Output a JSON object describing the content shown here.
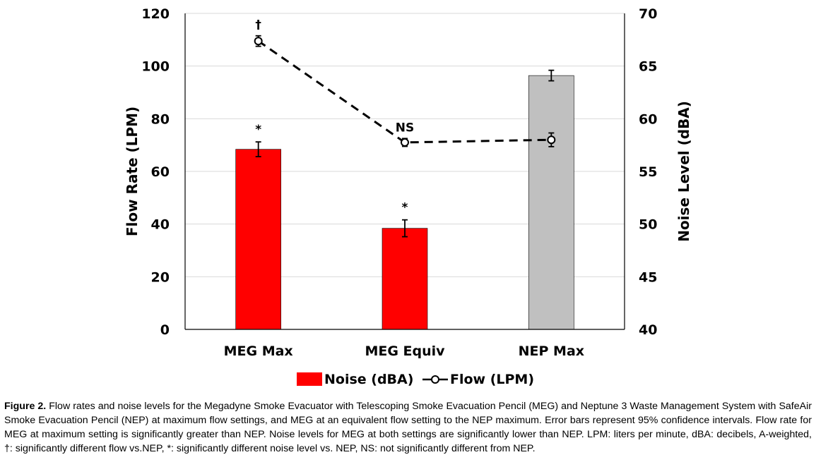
{
  "chart_data": {
    "type": "bar",
    "categories": [
      "MEG Max",
      "MEG Equiv",
      "NEP Max"
    ],
    "series": [
      {
        "name": "Noise (dBA)",
        "axis": "right",
        "kind": "bar",
        "values": [
          57.1,
          49.6,
          64.1
        ],
        "error": [
          0.7,
          0.8,
          0.5
        ],
        "colors": [
          "#ff0000",
          "#ff0000",
          "#c0c0c0"
        ],
        "annotations": [
          "*",
          "*",
          ""
        ]
      },
      {
        "name": "Flow (LPM)",
        "axis": "left",
        "kind": "line",
        "style": "dashed",
        "values": [
          109.5,
          71.0,
          72.0
        ],
        "error": [
          2.0,
          1.5,
          2.6
        ],
        "annotations": [
          "†",
          "NS",
          ""
        ]
      }
    ],
    "ylabel_left": "Flow Rate (LPM)",
    "ylabel_right": "Noise Level (dBA)",
    "ylim_left": [
      0,
      120
    ],
    "ylim_right": [
      40,
      70
    ],
    "yticks_left": [
      "0",
      "20",
      "40",
      "60",
      "80",
      "100",
      "120"
    ],
    "yticks_right": [
      "40",
      "45",
      "50",
      "55",
      "60",
      "65",
      "70"
    ],
    "grid": true,
    "legend": "bottom"
  },
  "caption": {
    "label": "Figure 2.",
    "text": "Flow rates and noise levels for the Megadyne Smoke Evacuator with Telescoping Smoke Evacuation Pencil (MEG) and Neptune 3 Waste Management System with SafeAir Smoke Evacuation Pencil (NEP) at maximum flow settings, and MEG at an equivalent flow setting to the NEP maximum. Error bars represent 95% confidence intervals. Flow rate for MEG at maximum setting is significantly greater than NEP. Noise levels for MEG at both settings are significantly lower than NEP. LPM: liters per minute, dBA: decibels, A-weighted, †: significantly different flow vs.NEP, *: significantly different noise level vs. NEP, NS: not significantly different from NEP."
  }
}
